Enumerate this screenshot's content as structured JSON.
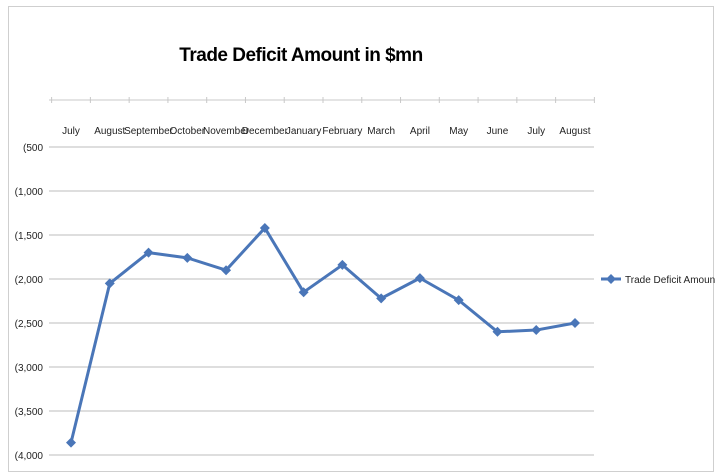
{
  "chart_data": {
    "type": "line",
    "title": "Trade Deficit Amount in $mn",
    "xlabel": "",
    "ylabel": "",
    "categories": [
      "July",
      "August",
      "September",
      "October",
      "November",
      "December",
      "January",
      "February",
      "March",
      "April",
      "May",
      "June",
      "July",
      "August"
    ],
    "y_tick_labels": [
      "(500",
      "(1,000",
      "(1,500",
      "(2,000",
      "(2,500",
      "(3,000",
      "(3,500",
      "(4,000"
    ],
    "ylim": [
      -4000,
      -500
    ],
    "y_inverted_label_note": "",
    "series": [
      {
        "name": "Trade Deficit Amount in $mn",
        "color": "#4a76b8",
        "values": [
          -3860,
          -2050,
          -1700,
          -1760,
          -1900,
          -1420,
          -2150,
          -1840,
          -2220,
          -1990,
          -2240,
          -2600,
          -2580,
          -2500
        ]
      }
    ],
    "grid": true,
    "legend_position": "right"
  }
}
